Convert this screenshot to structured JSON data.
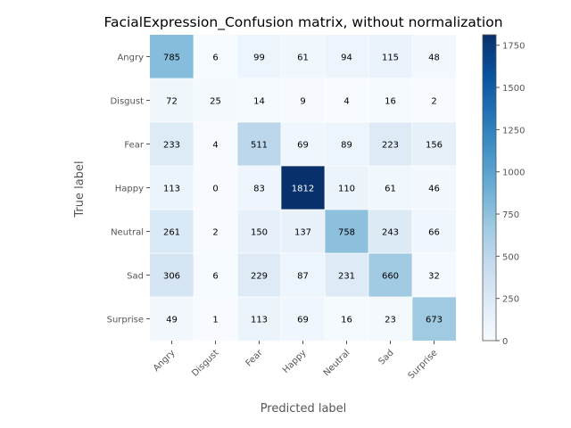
{
  "chart_data": {
    "type": "heatmap",
    "title": "FacialExpression_Confusion matrix, without normalization",
    "xlabel": "Predicted label",
    "ylabel": "True label",
    "x_categories": [
      "Angry",
      "Disgust",
      "Fear",
      "Happy",
      "Neutral",
      "Sad",
      "Surprise"
    ],
    "y_categories": [
      "Angry",
      "Disgust",
      "Fear",
      "Happy",
      "Neutral",
      "Sad",
      "Surprise"
    ],
    "values": [
      [
        785,
        6,
        99,
        61,
        94,
        115,
        48
      ],
      [
        72,
        25,
        14,
        9,
        4,
        16,
        2
      ],
      [
        233,
        4,
        511,
        69,
        89,
        223,
        156
      ],
      [
        113,
        0,
        83,
        1812,
        110,
        61,
        46
      ],
      [
        261,
        2,
        150,
        137,
        758,
        243,
        66
      ],
      [
        306,
        6,
        229,
        87,
        231,
        660,
        32
      ],
      [
        49,
        1,
        113,
        69,
        16,
        23,
        673
      ]
    ],
    "colormap": "Blues",
    "color_range": [
      0,
      1812
    ],
    "colorbar_ticks": [
      0,
      250,
      500,
      750,
      1000,
      1250,
      1500,
      1750
    ],
    "grid": true,
    "text_color_dark": "#000000",
    "text_color_light": "#ffffff"
  }
}
